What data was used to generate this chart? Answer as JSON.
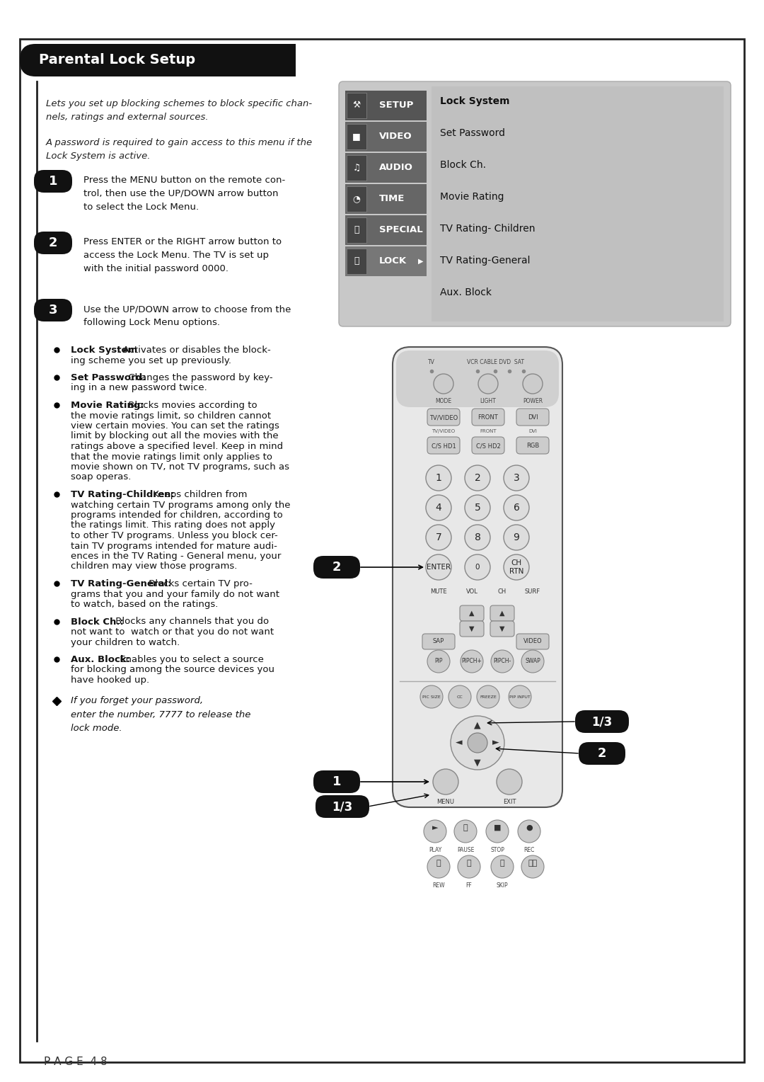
{
  "title": "Parental Lock Setup",
  "bg_color": "#ffffff",
  "header_bg": "#111111",
  "header_text_color": "#ffffff",
  "border_color": "#222222",
  "intro_text1": "Lets you set up blocking schemes to block specific chan-\nnels, ratings and external sources.",
  "intro_text2": "A password is required to gain access to this menu if the\nLock System is active.",
  "step1_text": "Press the MENU button on the remote con-\ntrol, then use the UP/DOWN arrow button\nto select the Lock Menu.",
  "step2_text": "Press ENTER or the RIGHT arrow button to\naccess the Lock Menu. The TV is set up\nwith the initial password 0000.",
  "step3_text": "Use the UP/DOWN arrow to choose from the\nfollowing Lock Menu options.",
  "menu_items": [
    "SETUP",
    "VIDEO",
    "AUDIO",
    "TIME",
    "SPECIAL",
    "LOCK"
  ],
  "lock_options": [
    "Lock System",
    "Set Password",
    "Block Ch.",
    "Movie Rating",
    "TV Rating- Children",
    "TV Rating-General",
    "Aux. Block"
  ],
  "bullet_items": [
    {
      "bold": "Lock System",
      "rest": ": Activates or disables the block-\ning scheme you set up previously.",
      "lines": 2
    },
    {
      "bold": "Set Password:",
      "rest": " Changes the password by key-\ning in a new password twice.",
      "lines": 2
    },
    {
      "bold": "Movie Rating:",
      "rest": " Blocks movies according to\nthe movie ratings limit, so children cannot\nview certain movies. You can set the ratings\nlimit by blocking out all the movies with the\nratings above a specified level. Keep in mind\nthat the movie ratings limit only applies to\nmovie shown on TV, not TV programs, such as\nsoap operas.",
      "lines": 9
    },
    {
      "bold": "TV Rating-Children:",
      "rest": " Keeps children from\nwatching certain TV programs among only the\nprograms intended for children, according to\nthe ratings limit. This rating does not apply\nto other TV programs. Unless you block cer-\ntain TV programs intended for mature audi-\nences in the TV Rating - General menu, your\nchildren may view those programs.",
      "lines": 8
    },
    {
      "bold": "TV Rating-General:",
      "rest": " Blocks certain TV pro-\ngrams that you and your family do not want\nto watch, based on the ratings.",
      "lines": 3
    },
    {
      "bold": "Block Ch.:",
      "rest": " Blocks any channels that you do\nnot want to  watch or that you do not want\nyour children to watch.",
      "lines": 3
    },
    {
      "bold": "Aux. Block:",
      "rest": " Enables you to select a source\nfor blocking among the source devices you\nhave hooked up.",
      "lines": 3
    }
  ],
  "note_text": "If you forget your password,\nenter the number, 7777 to release the\nlock mode.",
  "page_text": "P A G E  4 8",
  "step_badge_color": "#111111",
  "step_text_color": "#ffffff",
  "remote_body_color": "#e0e0e0",
  "remote_border_color": "#555555",
  "button_color": "#cccccc",
  "button_border": "#888888",
  "black_button": "#222222"
}
